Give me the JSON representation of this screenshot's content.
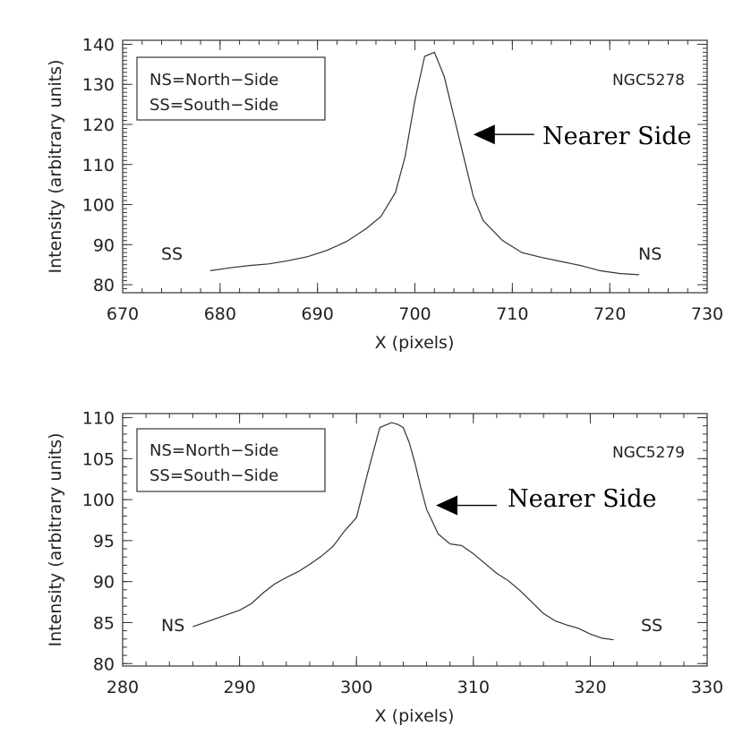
{
  "chart_data": [
    {
      "type": "line",
      "name": "NGC5278",
      "xlabel": "X (pixels)",
      "ylabel": "Intensity (arbitrary units)",
      "xlim": [
        670,
        730
      ],
      "ylim": [
        78,
        141
      ],
      "xticks": [
        670,
        680,
        690,
        700,
        710,
        720,
        730
      ],
      "yticks": [
        80,
        90,
        100,
        110,
        120,
        130,
        140
      ],
      "legend": [
        "NS=North−Side",
        "SS=South−Side"
      ],
      "left_side_label": "SS",
      "right_side_label": "NS",
      "annotation": "Nearer Side",
      "annotation_arrow_target": {
        "x": 706,
        "y": 117.5
      },
      "x": [
        679,
        681,
        683,
        685,
        687,
        689,
        691,
        693,
        695,
        696.5,
        698,
        699,
        700,
        701,
        702,
        703,
        704,
        705,
        706,
        707,
        709,
        711,
        713,
        715,
        717,
        719,
        721,
        723
      ],
      "y": [
        83.5,
        84.2,
        84.8,
        85.2,
        86,
        87,
        88.6,
        90.8,
        94,
        97,
        103,
        112,
        126,
        137,
        138,
        132,
        122,
        112,
        102,
        96,
        91,
        88,
        86.8,
        85.8,
        84.8,
        83.5,
        82.8,
        82.5
      ]
    },
    {
      "type": "line",
      "name": "NGC5279",
      "xlabel": "X (pixels)",
      "ylabel": "Intensity (arbitrary units)",
      "xlim": [
        280,
        330
      ],
      "ylim": [
        79.7,
        110.5
      ],
      "xticks": [
        280,
        290,
        300,
        310,
        320,
        330
      ],
      "yticks": [
        80,
        85,
        90,
        95,
        100,
        105,
        110
      ],
      "legend": [
        "NS=North−Side",
        "SS=South−Side"
      ],
      "left_side_label": "NS",
      "right_side_label": "SS",
      "annotation": "Nearer Side",
      "annotation_arrow_target": {
        "x": 306.8,
        "y": 99.3
      },
      "x": [
        286,
        288,
        290,
        291,
        292,
        293,
        294,
        295,
        296,
        297,
        298,
        299,
        300,
        301,
        302,
        302.5,
        303,
        303.5,
        304,
        304.5,
        305,
        305.5,
        306,
        307,
        308,
        309,
        310,
        311,
        312,
        313,
        314,
        315,
        316,
        317,
        318,
        319,
        320,
        321,
        322
      ],
      "y": [
        84.5,
        85.5,
        86.5,
        87.3,
        88.6,
        89.7,
        90.5,
        91.2,
        92.1,
        93.1,
        94.3,
        96.2,
        97.8,
        103.5,
        108.8,
        109.1,
        109.4,
        109.2,
        108.8,
        107,
        104.5,
        101.5,
        98.8,
        95.8,
        94.6,
        94.4,
        93.4,
        92.2,
        91,
        90.1,
        88.9,
        87.5,
        86.1,
        85.2,
        84.7,
        84.3,
        83.6,
        83.1,
        82.9
      ]
    }
  ]
}
